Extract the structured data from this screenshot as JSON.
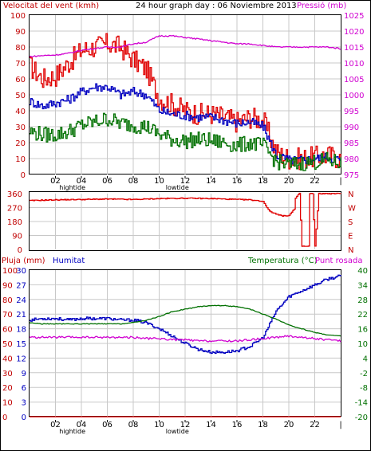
{
  "title": "24 hour graph day : 06 Noviembre 2013",
  "colors": {
    "wind": "#e00000",
    "pressure": "#d000d0",
    "blue": "#0000c0",
    "green": "#007000",
    "grid": "#c8c8c8",
    "axisRed": "#c00000"
  },
  "x_axis": {
    "ticks": [
      "02",
      "04",
      "06",
      "08",
      "10",
      "12",
      "14",
      "16",
      "18",
      "20",
      "22"
    ],
    "hightide_label": "hightide",
    "lowtide_label": "lowtide"
  },
  "chart_data": [
    {
      "type": "line",
      "panel": "wind-pressure",
      "left_label": "Velocitat del vent (kmh)",
      "right_label": "Pressió (mb)",
      "left_ticks": [
        "100",
        "90",
        "80",
        "70",
        "60",
        "50",
        "40",
        "30",
        "20",
        "10",
        "0"
      ],
      "right_ticks": [
        "1025",
        "1020",
        "1015",
        "1010",
        "1005",
        "1000",
        "995",
        "990",
        "985",
        "980",
        "975"
      ],
      "ylim_left": [
        0,
        100
      ],
      "ylim_right": [
        975,
        1025
      ],
      "x_hours": [
        0,
        1,
        2,
        3,
        4,
        5,
        6,
        7,
        8,
        9,
        10,
        11,
        12,
        13,
        14,
        15,
        16,
        17,
        18,
        19,
        20,
        21,
        22,
        23,
        24
      ],
      "series": [
        {
          "color": "#e00000",
          "axis": "left",
          "values": [
            68,
            60,
            62,
            70,
            78,
            80,
            82,
            80,
            72,
            66,
            48,
            44,
            40,
            38,
            38,
            36,
            33,
            36,
            34,
            14,
            10,
            10,
            11,
            12,
            10
          ]
        },
        {
          "color": "#0000c0",
          "axis": "left",
          "values": [
            46,
            43,
            45,
            47,
            52,
            55,
            55,
            50,
            52,
            50,
            40,
            38,
            37,
            36,
            36,
            34,
            32,
            33,
            30,
            12,
            9,
            9,
            10,
            11,
            9
          ]
        },
        {
          "color": "#007000",
          "axis": "left",
          "values": [
            27,
            25,
            25,
            27,
            31,
            33,
            35,
            32,
            31,
            30,
            25,
            22,
            21,
            22,
            21,
            20,
            18,
            20,
            18,
            8,
            6,
            7,
            8,
            9,
            7
          ]
        },
        {
          "color": "#d000d0",
          "axis": "right",
          "values": [
            1012.0,
            1012.3,
            1012.5,
            1013.0,
            1014.0,
            1014.5,
            1015.0,
            1015.0,
            1016.0,
            1016.5,
            1018.5,
            1018.5,
            1018.0,
            1017.5,
            1017.0,
            1016.5,
            1016.0,
            1016.0,
            1015.5,
            1015.0,
            1015.0,
            1015.0,
            1015.0,
            1015.0,
            1014.5
          ]
        }
      ]
    },
    {
      "type": "line",
      "panel": "direction",
      "left_ticks": [
        "360",
        "270",
        "180",
        "90",
        "0"
      ],
      "right_ticks": [
        "N",
        "W",
        "S",
        "E",
        "N"
      ],
      "ylim_left": [
        0,
        360
      ],
      "x_hours": [
        0,
        2,
        4,
        6,
        8,
        10,
        12,
        14,
        16,
        17,
        18,
        18.3,
        18.6,
        19,
        19.5,
        20,
        20.4,
        20.5,
        20.8,
        21,
        21.5,
        21.6,
        21.8,
        22,
        22.3,
        23,
        24
      ],
      "series": [
        {
          "color": "#e00000",
          "axis": "left",
          "values": [
            315,
            320,
            322,
            325,
            322,
            328,
            330,
            328,
            322,
            320,
            310,
            270,
            240,
            230,
            215,
            220,
            260,
            330,
            360,
            20,
            20,
            360,
            360,
            20,
            360,
            360,
            360
          ]
        }
      ]
    },
    {
      "type": "line",
      "panel": "humidity-temperature",
      "left_label_rain": "Pluja (mm)",
      "left_label_humidity": "Humitat",
      "right_label_temp": "Temperatura (°C)",
      "right_label_dew": "Punt rosada",
      "rain_ticks": [
        "100",
        "90",
        "80",
        "70",
        "60",
        "50",
        "40",
        "30",
        "20",
        "10",
        "0"
      ],
      "humidity_ticks": [
        "30",
        "27",
        "24",
        "21",
        "18",
        "15",
        "12",
        "9",
        "6",
        "3",
        "0"
      ],
      "temp_ticks": [
        "40",
        "34",
        "28",
        "22",
        "16",
        "10",
        "4",
        "-2",
        "-8",
        "-14",
        "-20"
      ],
      "ylim_humidity": [
        0,
        100
      ],
      "ylim_temp": [
        -20,
        40
      ],
      "x_hours": [
        0,
        1,
        2,
        3,
        4,
        5,
        6,
        7,
        8,
        9,
        10,
        11,
        12,
        13,
        14,
        15,
        16,
        17,
        18,
        19,
        20,
        21,
        22,
        23,
        24
      ],
      "series": [
        {
          "color": "#0000c0",
          "axis": "left",
          "values": [
            66,
            67,
            67,
            66,
            67,
            67,
            67,
            66,
            66,
            64,
            60,
            55,
            50,
            46,
            44,
            44,
            45,
            48,
            54,
            72,
            82,
            86,
            90,
            94,
            96
          ]
        },
        {
          "color": "#007000",
          "axis": "right",
          "values": [
            18.5,
            18.0,
            18.0,
            18.0,
            18.0,
            18.0,
            18.0,
            18.0,
            18.5,
            19.5,
            21.0,
            23.0,
            24.0,
            25.0,
            25.5,
            25.5,
            25.0,
            24.0,
            22.0,
            20.0,
            17.5,
            16.0,
            14.5,
            13.5,
            13.0
          ]
        },
        {
          "color": "#d000d0",
          "axis": "right",
          "values": [
            12.5,
            12.5,
            12.5,
            12.5,
            12.5,
            12.5,
            12.5,
            12.5,
            12.5,
            12.0,
            12.0,
            11.5,
            11.5,
            11.0,
            11.0,
            11.0,
            11.0,
            11.5,
            12.0,
            12.5,
            13.0,
            12.5,
            12.0,
            11.5,
            11.0
          ]
        },
        {
          "color": "#e00000",
          "axis": "left",
          "values": [
            0,
            0,
            0,
            0,
            0,
            0,
            0,
            0,
            0,
            0,
            0,
            0,
            0,
            0,
            0,
            0,
            0,
            0,
            0,
            0,
            0,
            0,
            0,
            0,
            0
          ]
        }
      ]
    }
  ]
}
